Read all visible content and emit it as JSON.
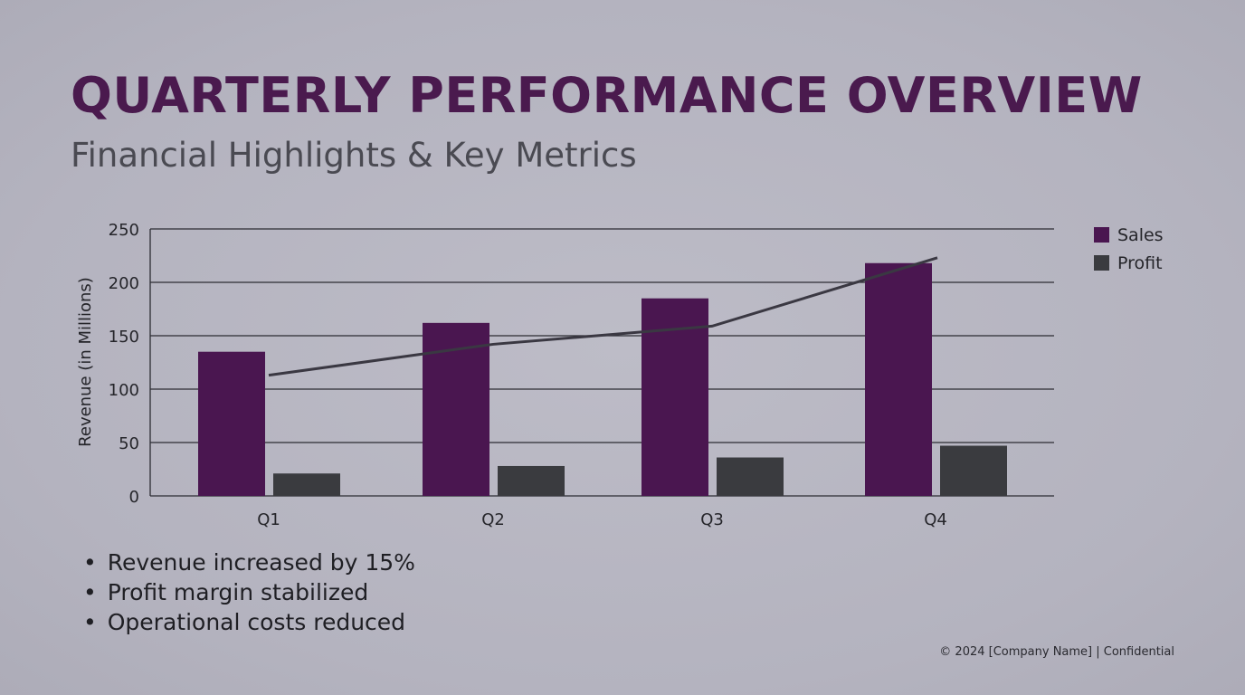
{
  "slide": {
    "title": "QUARTERLY PERFORMANCE OVERVIEW",
    "subtitle": "Financial Highlights & Key Metrics",
    "bullets": [
      "Revenue increased by 15%",
      "Profit margin stabilized",
      "Operational costs reduced"
    ],
    "footer": "© 2024 [Company Name] | Confidential"
  },
  "chart_data": {
    "type": "bar",
    "title": "",
    "xlabel": "",
    "ylabel": "Revenue (in Millions)",
    "ylim": [
      0,
      250
    ],
    "yticks": [
      0,
      50,
      100,
      150,
      200,
      250
    ],
    "grid": true,
    "legend_position": "top-right",
    "categories": [
      "Q1",
      "Q2",
      "Q3",
      "Q4"
    ],
    "series": [
      {
        "name": "Sales",
        "type": "bar",
        "color": "#4a1650",
        "values": [
          135,
          162,
          185,
          218
        ]
      },
      {
        "name": "Profit",
        "type": "bar",
        "color": "#3a3b3f",
        "values": [
          21,
          28,
          36,
          47
        ]
      },
      {
        "name": "",
        "type": "line",
        "color": "#3a3842",
        "values": [
          113,
          142,
          159,
          223
        ]
      }
    ]
  }
}
